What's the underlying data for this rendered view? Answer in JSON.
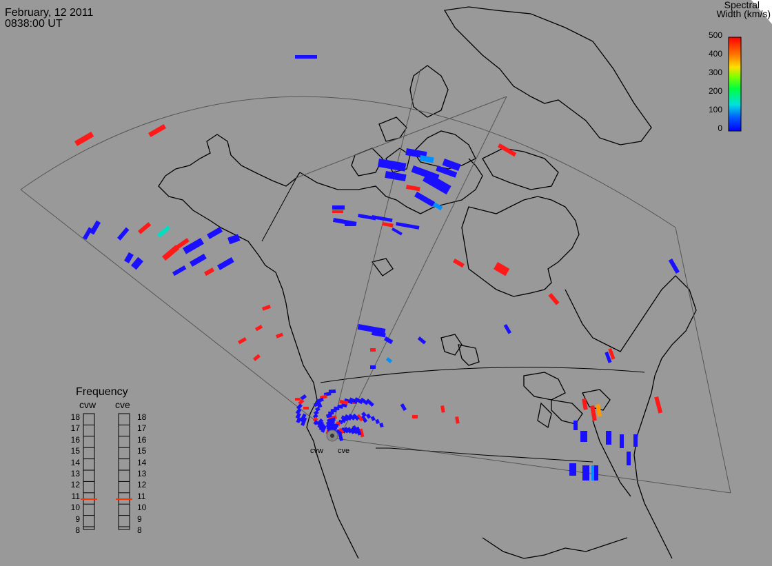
{
  "header": {
    "date": "February, 12 2011",
    "time": "0838:00 UT"
  },
  "colorbar": {
    "title_line1": "Spectral",
    "title_line2": "Width (km/s)",
    "ticks": [
      "500",
      "400",
      "300",
      "200",
      "100",
      "0"
    ],
    "range": [
      0,
      500
    ],
    "colors": [
      "#0000ff",
      "#00a0ff",
      "#00ffc0",
      "#00ff00",
      "#c0ff00",
      "#ffff00",
      "#ffa000",
      "#ff0000"
    ]
  },
  "frequency": {
    "title": "Frequency",
    "radars": [
      {
        "name": "cvw",
        "value_mhz": 10.7
      },
      {
        "name": "cve",
        "value_mhz": 10.7
      }
    ],
    "scale": [
      "18",
      "17",
      "16",
      "15",
      "14",
      "13",
      "12",
      "11",
      "10",
      "9",
      "8"
    ],
    "marker_color": "#ff3300"
  },
  "radar_labels": [
    "cvw",
    "cve"
  ],
  "colors": {
    "background": "#999999",
    "coastline": "#000000",
    "fov": "#555555",
    "low_width": "#1a10ff",
    "high_width": "#ff1a1a"
  }
}
